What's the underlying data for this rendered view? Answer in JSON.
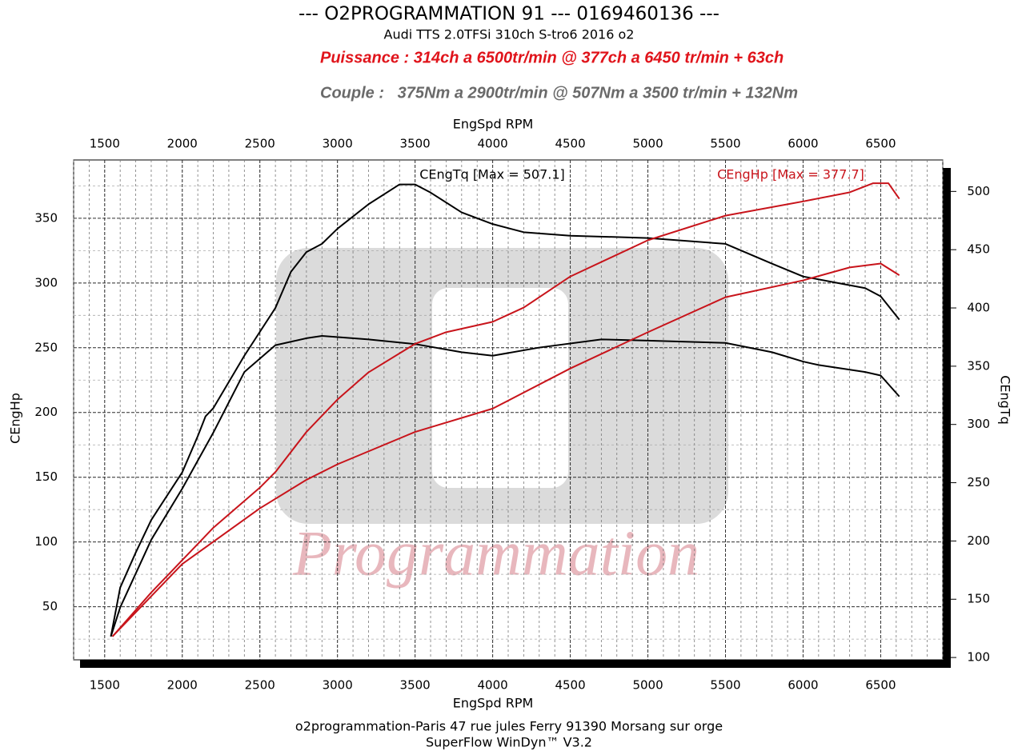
{
  "chart_data": {
    "type": "line",
    "title": "--- O2PROGRAMMATION 91 --- 0169460136 ---",
    "subtitle": "Audi TTS 2.0TFSi 310ch S-tro6 2016 o2",
    "annotations": [
      {
        "text": "Puissance : 314ch a 6500tr/min @ 377ch a 6450 tr/min + 63ch",
        "color": "#e0141b"
      },
      {
        "text": "Couple :   375Nm a 2900tr/min @ 507Nm a 3500 tr/min + 132Nm",
        "color": "#6a6a6a"
      }
    ],
    "x_label": "EngSpd RPM",
    "y_label": "CEngHp",
    "y2_label": "CEngTq",
    "legend": [
      {
        "text": "CEngTq [Max = 507.1]",
        "color": "#000000"
      },
      {
        "text": "CEngHp [Max = 377.7]",
        "color": "#c8141b"
      }
    ],
    "watermark": "Programmation",
    "footer": [
      "o2programmation-Paris 47 rue jules Ferry 91390 Morsang sur orge",
      "SuperFlow WinDyn™ V3.2"
    ],
    "xlim": [
      1300,
      6900
    ],
    "xticks": [
      1500,
      2000,
      2500,
      3000,
      3500,
      4000,
      4500,
      5000,
      5500,
      6000,
      6500
    ],
    "ylim": [
      9,
      395
    ],
    "yticks": [
      50,
      100,
      150,
      200,
      250,
      300,
      350
    ],
    "y2lim": [
      98,
      527
    ],
    "y2ticks": [
      100,
      150,
      200,
      250,
      300,
      350,
      400,
      450,
      500
    ],
    "grid": true,
    "series": [
      {
        "color": "#000000",
        "axis": "y2",
        "x": [
          1540,
          1600,
          1700,
          1800,
          2000,
          2100,
          2150,
          2200,
          2400,
          2600,
          2700,
          2800,
          2900,
          3000,
          3200,
          3400,
          3500,
          3600,
          3800,
          4000,
          4200,
          4500,
          5000,
          5500,
          5800,
          6000,
          6200,
          6400,
          6500,
          6620
        ],
        "values": [
          118,
          160,
          190,
          218,
          259,
          290,
          307,
          314,
          359,
          400,
          431,
          448,
          455,
          468,
          489,
          506,
          506,
          499,
          482,
          472,
          465,
          462,
          460,
          455,
          438,
          427,
          422,
          417,
          410,
          390
        ]
      },
      {
        "color": "#000000",
        "axis": "y2",
        "x": [
          1540,
          1600,
          1800,
          2000,
          2200,
          2400,
          2600,
          2800,
          2900,
          3200,
          3500,
          3800,
          4000,
          4300,
          4700,
          5000,
          5500,
          5800,
          6000,
          6100,
          6400,
          6500,
          6620
        ],
        "values": [
          118,
          143,
          201,
          245,
          293,
          345,
          368,
          374,
          376,
          373,
          369,
          362,
          359,
          366,
          373,
          372,
          370,
          362,
          354,
          351,
          345,
          342,
          324
        ]
      },
      {
        "color": "#c8141b",
        "x": [
          1550,
          1800,
          2000,
          2200,
          2500,
          2600,
          2800,
          3000,
          3200,
          3500,
          3700,
          4000,
          4200,
          4500,
          5000,
          5500,
          6000,
          6300,
          6450,
          6550,
          6620
        ],
        "values": [
          27,
          61,
          86,
          111,
          142,
          154,
          185,
          210,
          231,
          253,
          262,
          270,
          281,
          305,
          333,
          352,
          363,
          370,
          377,
          377,
          365
        ]
      },
      {
        "color": "#c8141b",
        "x": [
          1550,
          2000,
          2500,
          2800,
          3000,
          3500,
          4000,
          4500,
          5000,
          5500,
          6000,
          6300,
          6500,
          6620
        ],
        "values": [
          27,
          83,
          126,
          148,
          160,
          185,
          203,
          234,
          262,
          289,
          302,
          312,
          315,
          306
        ]
      }
    ]
  }
}
